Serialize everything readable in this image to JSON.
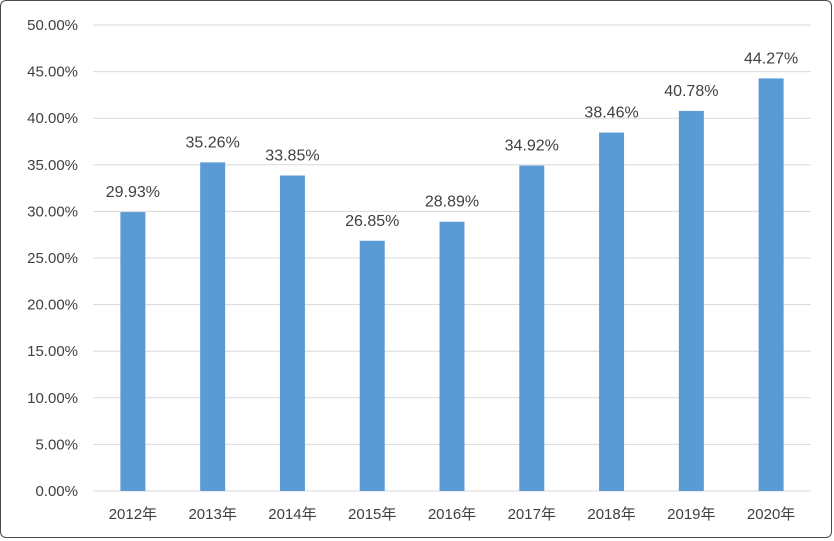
{
  "chart_data": {
    "type": "bar",
    "title": "",
    "xlabel": "",
    "ylabel": "",
    "categories": [
      "2012年",
      "2013年",
      "2014年",
      "2015年",
      "2016年",
      "2017年",
      "2018年",
      "2019年",
      "2020年"
    ],
    "values": [
      29.93,
      35.26,
      33.85,
      26.85,
      28.89,
      34.92,
      38.46,
      40.78,
      44.27
    ],
    "data_labels": [
      "29.93%",
      "35.26%",
      "33.85%",
      "26.85%",
      "28.89%",
      "34.92%",
      "38.46%",
      "40.78%",
      "44.27%"
    ],
    "ylim": [
      0,
      50
    ],
    "y_ticks": [
      0,
      5,
      10,
      15,
      20,
      25,
      30,
      35,
      40,
      45,
      50
    ],
    "y_tick_labels": [
      "0.00%",
      "5.00%",
      "10.00%",
      "15.00%",
      "20.00%",
      "25.00%",
      "30.00%",
      "35.00%",
      "40.00%",
      "45.00%",
      "50.00%"
    ],
    "grid": true,
    "legend": "none",
    "bar_color": "#5b9bd5"
  }
}
